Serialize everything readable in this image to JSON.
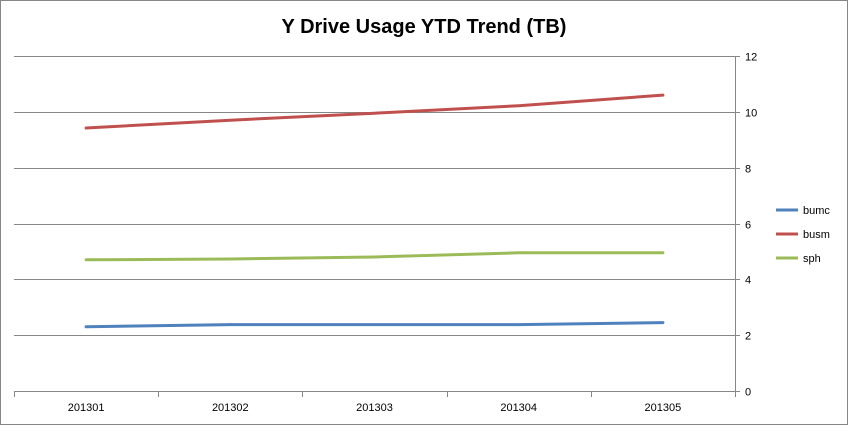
{
  "chart_data": {
    "type": "line",
    "title": "Y Drive Usage YTD Trend (TB)",
    "xlabel": "",
    "ylabel": "",
    "categories": [
      "201301",
      "201302",
      "201303",
      "201304",
      "201305"
    ],
    "ylim": [
      0,
      12
    ],
    "yticks": [
      0,
      2,
      4,
      6,
      8,
      10,
      12
    ],
    "y_axis_position": "right",
    "grid": true,
    "legend_position": "right",
    "series": [
      {
        "name": "bumc",
        "values": [
          2.3,
          2.38,
          2.38,
          2.38,
          2.45
        ],
        "color": "#4F81BD"
      },
      {
        "name": "busm",
        "values": [
          9.42,
          9.7,
          9.95,
          10.22,
          10.6
        ],
        "color": "#C0504D"
      },
      {
        "name": "sph",
        "values": [
          4.7,
          4.73,
          4.8,
          4.95,
          4.95
        ],
        "color": "#9BBB59"
      }
    ],
    "gridline_color": "#868686"
  }
}
